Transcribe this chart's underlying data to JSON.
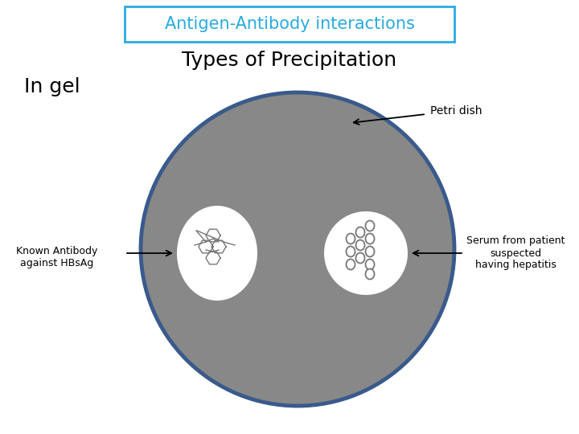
{
  "title_box_text": "Antigen-Antibody interactions",
  "title_box_color": "#29ABE2",
  "subtitle_text": "Types of Precipitation",
  "subtitle_fontsize": 18,
  "ingel_text": "In gel",
  "ingel_fontsize": 18,
  "petri_text": "Petri dish",
  "petri_fontsize": 10,
  "bg_color": "white",
  "main_circle_color": "#888888",
  "main_circle_edge": "#3a5a8c",
  "left_label": "Known Antibody\nagainst HBsAg",
  "right_label": "Serum from patient\nsuspected\nhaving hepatitis",
  "label_fontsize": 9,
  "title_fontsize": 15
}
